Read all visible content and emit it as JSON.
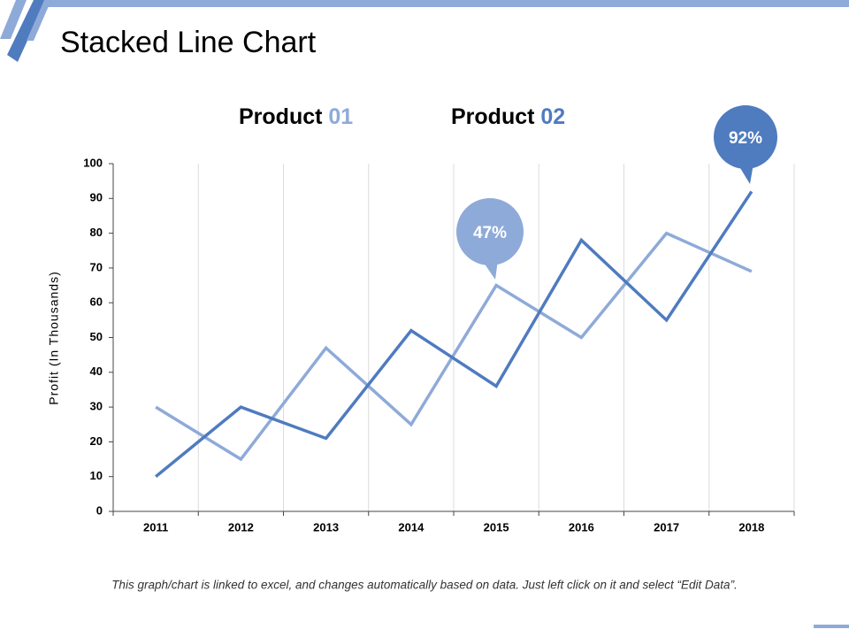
{
  "chart_data": {
    "type": "line",
    "title": "Stacked Line Chart",
    "y_label": "Profit (In Thousands)",
    "footnote": "This graph/chart is linked to excel, and changes automatically based on data. Just left click on it and select “Edit Data”.",
    "categories": [
      "2011",
      "2012",
      "2013",
      "2014",
      "2015",
      "2016",
      "2017",
      "2018"
    ],
    "series": [
      {
        "name": "Product 01",
        "color": "#8eaad8",
        "values": [
          30,
          15,
          47,
          25,
          65,
          50,
          80,
          69
        ]
      },
      {
        "name": "Product 02",
        "color": "#4f7bbf",
        "values": [
          10,
          30,
          21,
          52,
          36,
          78,
          55,
          92
        ]
      }
    ],
    "annotations": [
      "47%",
      "92%"
    ],
    "ylim": [
      0,
      100
    ],
    "yticks": [
      0,
      10,
      20,
      30,
      40,
      50,
      60,
      70,
      80,
      90,
      100
    ],
    "grid": true
  }
}
